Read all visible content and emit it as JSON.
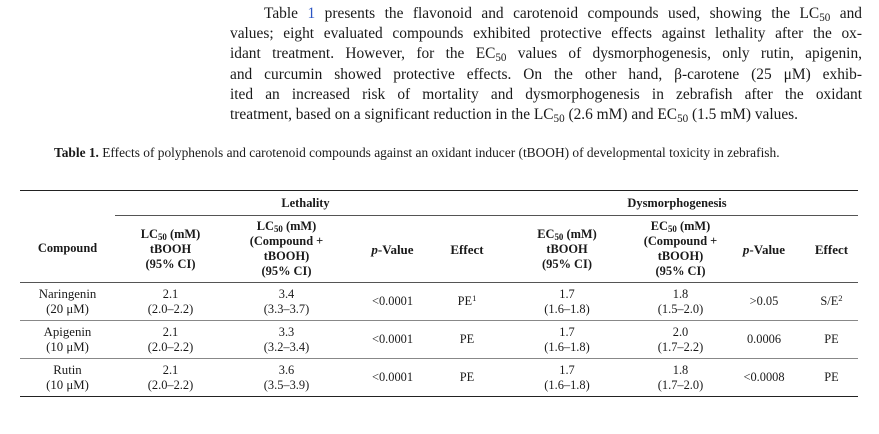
{
  "paragraph": {
    "l1_a": "Table ",
    "l1_ref": "1",
    "l1_b": " presents the flavonoid and carotenoid compounds used, showing the LC",
    "l1_sub": "50",
    "l1_c": " and",
    "l2": "values; eight evaluated compounds exhibited protective effects against lethality after the ox-",
    "l3": "idant treatment. However, for the EC",
    "l3_sub": "50",
    "l3_b": " values of dysmorphogenesis, only rutin, apigenin,",
    "l4": "and curcumin showed protective effects. On the other hand, β-carotene (25 μM) exhib-",
    "l5": "ited an increased risk of mortality and dysmorphogenesis in zebrafish after the oxidant",
    "l6_a": "treatment, based on a significant reduction in the LC",
    "l6_sub1": "50",
    "l6_b": " (2.6 mM) and EC",
    "l6_sub2": "50",
    "l6_c": " (1.5 mM) values."
  },
  "caption": {
    "label": "Table 1.",
    "text": " Effects of polyphenols and carotenoid compounds against an oxidant inducer (tBOOH) of developmental toxicity in zebrafish."
  },
  "table": {
    "group_lethality": "Lethality",
    "group_dysmorphogenesis": "Dysmorphogenesis",
    "col_compound": "Compound",
    "col_lc50_tbooh": {
      "pre": "LC",
      "sub": "50",
      "post": " (mM)",
      "l2": "tBOOH",
      "l3": "(95% CI)"
    },
    "col_lc50_comp": {
      "pre": "LC",
      "sub": "50",
      "post": " (mM)",
      "l2": "(Compound +",
      "l3": "tBOOH)",
      "l4": "(95% CI)"
    },
    "col_pvalue": {
      "italic": "p",
      "rest": "-Value"
    },
    "col_effect": "Effect",
    "col_ec50_tbooh": {
      "pre": "EC",
      "sub": "50",
      "post": " (mM)",
      "l2": "tBOOH",
      "l3": "(95% CI)"
    },
    "col_ec50_comp": {
      "pre": "EC",
      "sub": "50",
      "post": " (mM)",
      "l2": "(Compound +",
      "l3": "tBOOH)",
      "l4": "(95% CI)"
    },
    "rows": [
      {
        "name": "Naringenin",
        "dose": "(20 μM)",
        "lc_t": "2.1",
        "lc_t_ci": "(2.0–2.2)",
        "lc_c": "3.4",
        "lc_c_ci": "(3.3–3.7)",
        "p1": "<0.0001",
        "eff1": "PE",
        "eff1_sup": "1",
        "ec_t": "1.7",
        "ec_t_ci": "(1.6–1.8)",
        "ec_c": "1.8",
        "ec_c_ci": "(1.5–2.0)",
        "p2": ">0.05",
        "eff2": "S/E",
        "eff2_sup": "2"
      },
      {
        "name": "Apigenin",
        "dose": "(10 μM)",
        "lc_t": "2.1",
        "lc_t_ci": "(2.0–2.2)",
        "lc_c": "3.3",
        "lc_c_ci": "(3.2–3.4)",
        "p1": "<0.0001",
        "eff1": "PE",
        "eff1_sup": "",
        "ec_t": "1.7",
        "ec_t_ci": "(1.6–1.8)",
        "ec_c": "2.0",
        "ec_c_ci": "(1.7–2.2)",
        "p2": "0.0006",
        "eff2": "PE",
        "eff2_sup": ""
      },
      {
        "name": "Rutin",
        "dose": "(10 μM)",
        "lc_t": "2.1",
        "lc_t_ci": "(2.0–2.2)",
        "lc_c": "3.6",
        "lc_c_ci": "(3.5–3.9)",
        "p1": "<0.0001",
        "eff1": "PE",
        "eff1_sup": "",
        "ec_t": "1.7",
        "ec_t_ci": "(1.6–1.8)",
        "ec_c": "1.8",
        "ec_c_ci": "(1.7–2.0)",
        "p2": "<0.0008",
        "eff2": "PE",
        "eff2_sup": ""
      }
    ]
  }
}
